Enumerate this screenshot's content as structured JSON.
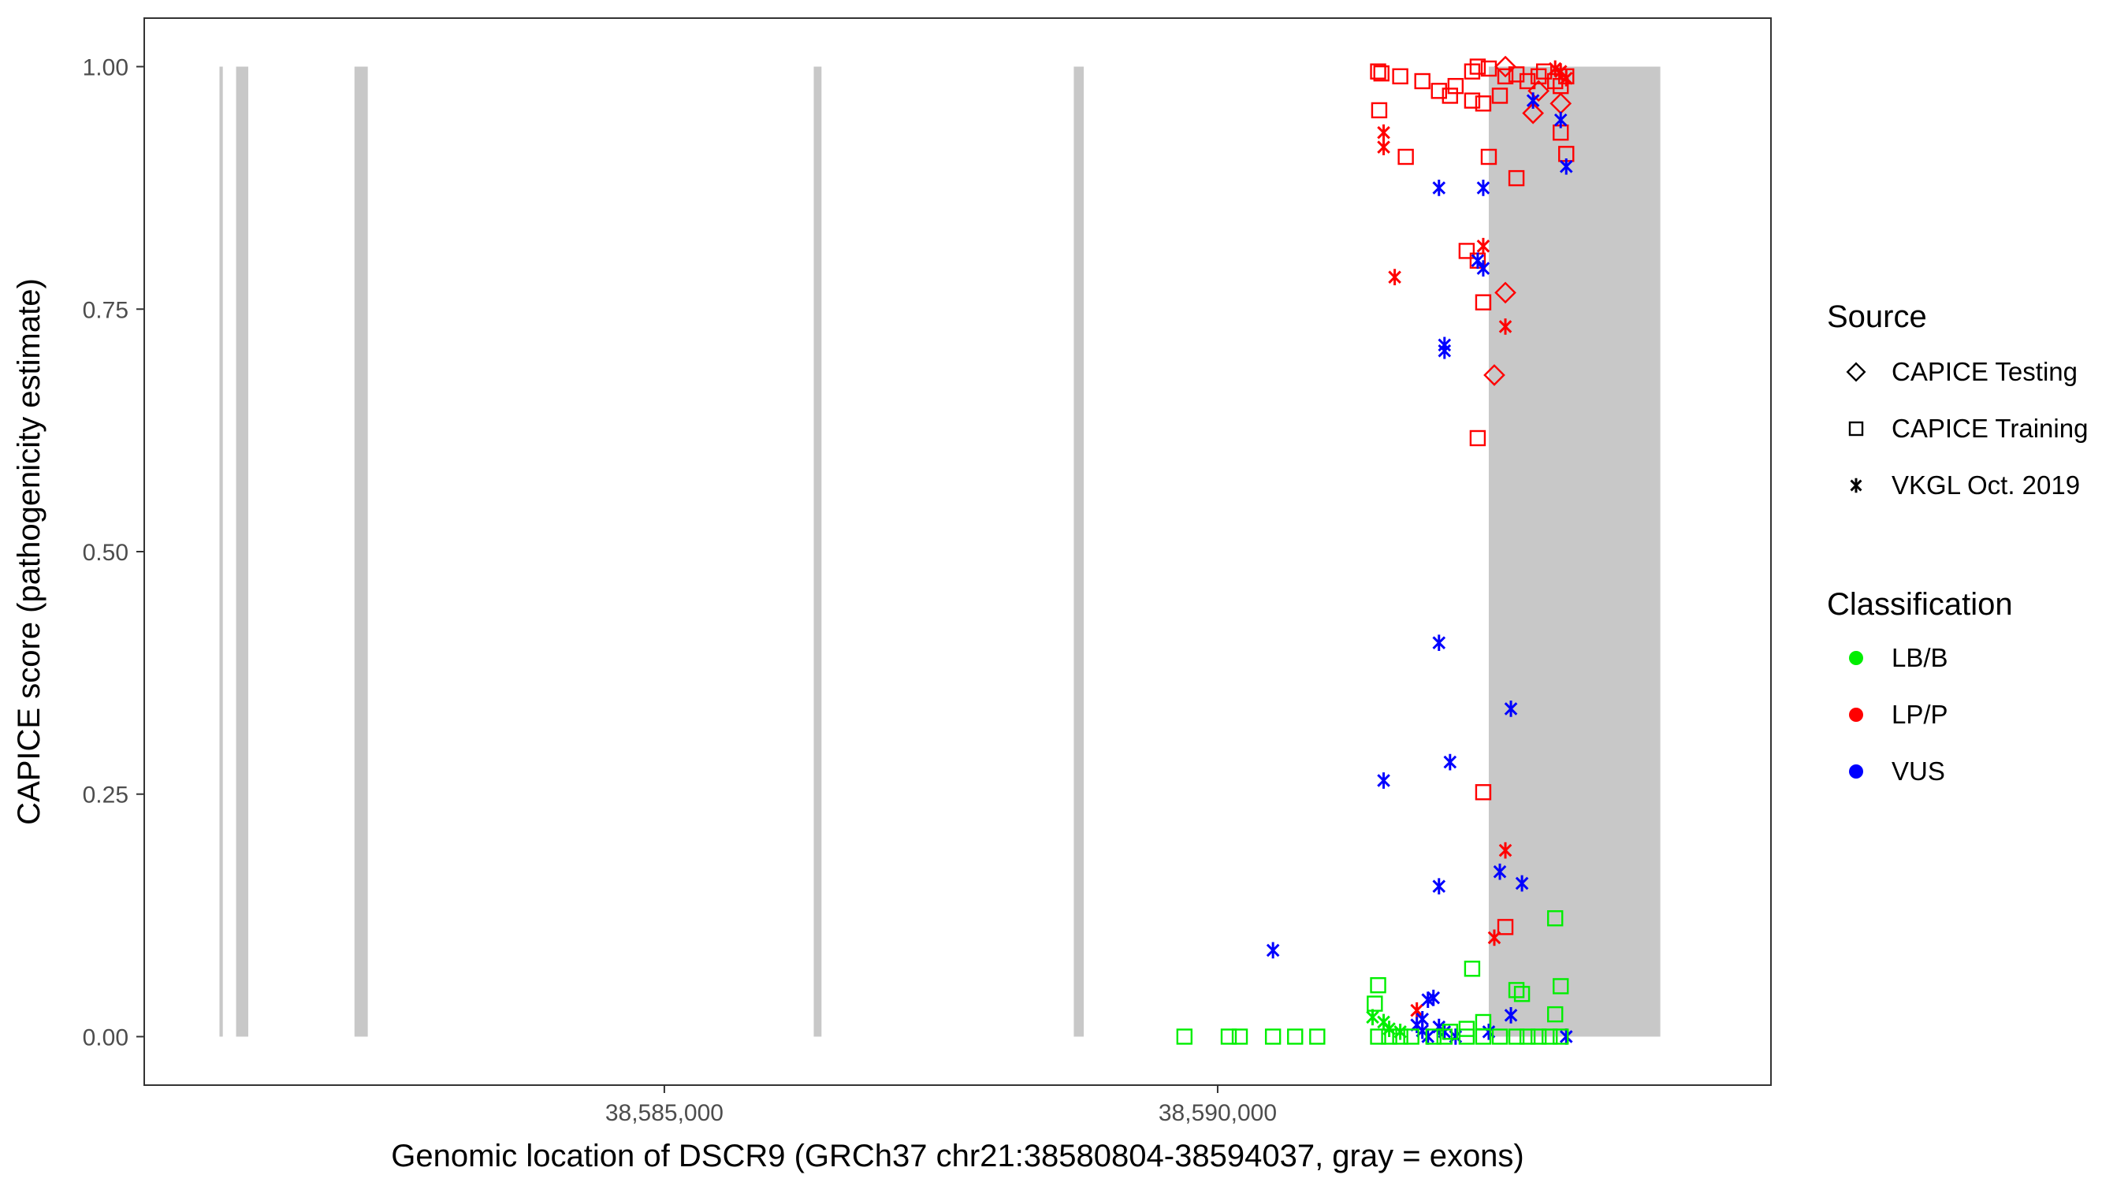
{
  "chart_data": {
    "type": "scatter",
    "title": "",
    "xlabel": "Genomic location of DSCR9 (GRCh37 chr21:38580804-38594037, gray = exons)",
    "ylabel": "CAPICE score (pathogenicity estimate)",
    "xlim": [
      38580300,
      38595000
    ],
    "ylim": [
      -0.05,
      1.05
    ],
    "x_ticks": [
      {
        "value": 38585000,
        "label": "38,585,000"
      },
      {
        "value": 38590000,
        "label": "38,590,000"
      }
    ],
    "y_ticks": [
      {
        "value": 0.0,
        "label": "0.00"
      },
      {
        "value": 0.25,
        "label": "0.25"
      },
      {
        "value": 0.5,
        "label": "0.50"
      },
      {
        "value": 0.75,
        "label": "0.75"
      },
      {
        "value": 1.0,
        "label": "1.00"
      }
    ],
    "exon_color": "#c8c8c8",
    "exons": [
      [
        38580980,
        38581010
      ],
      [
        38581130,
        38581240
      ],
      [
        38582200,
        38582320
      ],
      [
        38586350,
        38586420
      ],
      [
        38588700,
        38588790
      ],
      [
        38592450,
        38594000
      ]
    ],
    "legend_source": {
      "title": "Source",
      "entries": [
        {
          "shape": "diamond",
          "label": "CAPICE Testing"
        },
        {
          "shape": "square",
          "label": "CAPICE Training"
        },
        {
          "shape": "asterisk",
          "label": "VKGL Oct. 2019"
        }
      ]
    },
    "legend_classification": {
      "title": "Classification",
      "entries": [
        {
          "key": "LB/B",
          "label": "LB/B",
          "color": "#00ee00"
        },
        {
          "key": "LP/P",
          "label": "LP/P",
          "color": "#ff0000"
        },
        {
          "key": "VUS",
          "label": "VUS",
          "color": "#0000ff"
        }
      ]
    },
    "series": [
      {
        "source": "CAPICE Training",
        "shape": "square",
        "classification": "LP/P",
        "points": [
          [
            38591450,
            0.995
          ],
          [
            38591480,
            0.993
          ],
          [
            38591650,
            0.99
          ],
          [
            38591850,
            0.985
          ],
          [
            38592000,
            0.975
          ],
          [
            38592150,
            0.98
          ],
          [
            38592300,
            0.995
          ],
          [
            38592350,
            1.0
          ],
          [
            38592450,
            0.998
          ],
          [
            38592600,
            0.99
          ],
          [
            38592700,
            0.992
          ],
          [
            38592800,
            0.985
          ],
          [
            38592900,
            0.99
          ],
          [
            38592950,
            0.995
          ],
          [
            38593050,
            0.985
          ],
          [
            38593100,
            0.98
          ],
          [
            38593150,
            0.99
          ],
          [
            38592100,
            0.97
          ],
          [
            38592300,
            0.965
          ],
          [
            38592400,
            0.962
          ],
          [
            38592550,
            0.97
          ],
          [
            38591460,
            0.955
          ],
          [
            38591700,
            0.907
          ],
          [
            38592450,
            0.907
          ],
          [
            38593100,
            0.932
          ],
          [
            38593150,
            0.91
          ],
          [
            38592700,
            0.885
          ],
          [
            38592250,
            0.81
          ],
          [
            38592350,
            0.8
          ],
          [
            38592400,
            0.757
          ],
          [
            38592350,
            0.617
          ],
          [
            38592400,
            0.252
          ],
          [
            38592600,
            0.113
          ]
        ]
      },
      {
        "source": "CAPICE Testing",
        "shape": "diamond",
        "classification": "LP/P",
        "points": [
          [
            38592600,
            1.0
          ],
          [
            38592900,
            0.975
          ],
          [
            38593100,
            0.962
          ],
          [
            38592850,
            0.952
          ],
          [
            38592600,
            0.767
          ],
          [
            38592500,
            0.682
          ]
        ]
      },
      {
        "source": "VKGL Oct. 2019",
        "shape": "asterisk",
        "classification": "LP/P",
        "points": [
          [
            38593050,
            0.998
          ],
          [
            38593100,
            0.995
          ],
          [
            38593150,
            0.988
          ],
          [
            38591500,
            0.932
          ],
          [
            38591500,
            0.917
          ],
          [
            38591600,
            0.783
          ],
          [
            38592400,
            0.815
          ],
          [
            38592600,
            0.732
          ],
          [
            38592600,
            0.192
          ],
          [
            38592500,
            0.102
          ],
          [
            38591800,
            0.027
          ]
        ]
      },
      {
        "source": "VKGL Oct. 2019",
        "shape": "asterisk",
        "classification": "VUS",
        "points": [
          [
            38592850,
            0.965
          ],
          [
            38593100,
            0.945
          ],
          [
            38593150,
            0.897
          ],
          [
            38592000,
            0.875
          ],
          [
            38592400,
            0.875
          ],
          [
            38592350,
            0.8
          ],
          [
            38592400,
            0.792
          ],
          [
            38592050,
            0.713
          ],
          [
            38592050,
            0.707
          ],
          [
            38592000,
            0.406
          ],
          [
            38592650,
            0.338
          ],
          [
            38592100,
            0.283
          ],
          [
            38591500,
            0.264
          ],
          [
            38592550,
            0.17
          ],
          [
            38592750,
            0.158
          ],
          [
            38592000,
            0.155
          ],
          [
            38590500,
            0.089
          ],
          [
            38591900,
            0.038
          ],
          [
            38591950,
            0.04
          ],
          [
            38591850,
            0.018
          ],
          [
            38591800,
            0.012
          ],
          [
            38592000,
            0.01
          ],
          [
            38592050,
            0.005
          ],
          [
            38592150,
            0.0
          ],
          [
            38591900,
            0.0
          ],
          [
            38591850,
            0.006
          ],
          [
            38592450,
            0.005
          ],
          [
            38592650,
            0.022
          ],
          [
            38593150,
            0.0
          ]
        ]
      },
      {
        "source": "VKGL Oct. 2019",
        "shape": "asterisk",
        "classification": "LB/B",
        "points": [
          [
            38591400,
            0.02
          ],
          [
            38591500,
            0.015
          ],
          [
            38591550,
            0.008
          ],
          [
            38591650,
            0.005
          ]
        ]
      },
      {
        "source": "CAPICE Training",
        "shape": "square",
        "classification": "LB/B",
        "points": [
          [
            38589700,
            0.0
          ],
          [
            38590100,
            0.0
          ],
          [
            38590200,
            0.0
          ],
          [
            38590500,
            0.0
          ],
          [
            38590700,
            0.0
          ],
          [
            38590900,
            0.0
          ],
          [
            38591450,
            0.0
          ],
          [
            38591550,
            0.0
          ],
          [
            38591650,
            0.0
          ],
          [
            38591750,
            0.0
          ],
          [
            38591950,
            0.0
          ],
          [
            38592050,
            0.0
          ],
          [
            38592250,
            0.0
          ],
          [
            38592400,
            0.0
          ],
          [
            38592550,
            0.0
          ],
          [
            38592700,
            0.0
          ],
          [
            38592800,
            0.0
          ],
          [
            38592900,
            0.0
          ],
          [
            38593000,
            0.0
          ],
          [
            38593100,
            0.0
          ],
          [
            38592100,
            0.005
          ],
          [
            38592250,
            0.008
          ],
          [
            38591450,
            0.053
          ],
          [
            38591420,
            0.034
          ],
          [
            38592300,
            0.07
          ],
          [
            38592700,
            0.048
          ],
          [
            38592750,
            0.044
          ],
          [
            38593050,
            0.122
          ],
          [
            38593100,
            0.052
          ],
          [
            38593050,
            0.023
          ],
          [
            38592400,
            0.015
          ]
        ]
      }
    ]
  }
}
